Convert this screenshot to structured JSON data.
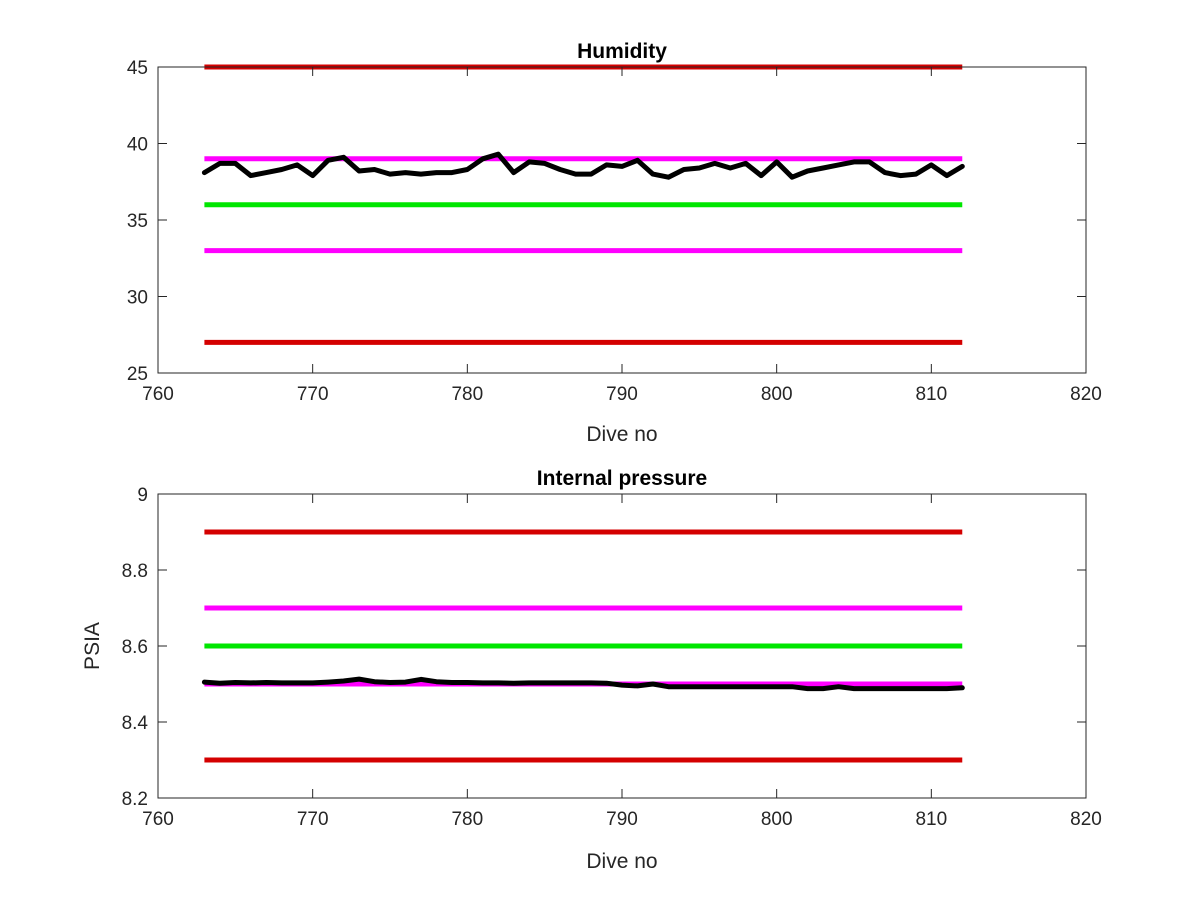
{
  "chart_data": [
    {
      "type": "line",
      "title": "Humidity",
      "xlabel": "Dive no",
      "ylabel": "",
      "xlim": [
        760,
        820
      ],
      "ylim": [
        25,
        45
      ],
      "xticks": [
        760,
        770,
        780,
        790,
        800,
        810,
        820
      ],
      "yticks": [
        25,
        30,
        35,
        40,
        45
      ],
      "xtick_labels": [
        "760",
        "770",
        "780",
        "790",
        "800",
        "810",
        "820"
      ],
      "ytick_labels": [
        "25",
        "30",
        "35",
        "40",
        "45"
      ],
      "grid": false,
      "reference_lines": [
        {
          "y": 45,
          "x": [
            763,
            812
          ],
          "color": "#d40000"
        },
        {
          "y": 39,
          "x": [
            763,
            812
          ],
          "color": "#ff00ff"
        },
        {
          "y": 36,
          "x": [
            763,
            812
          ],
          "color": "#00e600"
        },
        {
          "y": 33,
          "x": [
            763,
            812
          ],
          "color": "#ff00ff"
        },
        {
          "y": 27,
          "x": [
            763,
            812
          ],
          "color": "#d40000"
        }
      ],
      "series": [
        {
          "color": "#000000",
          "x": [
            763,
            764,
            765,
            766,
            767,
            768,
            769,
            770,
            771,
            772,
            773,
            774,
            775,
            776,
            777,
            778,
            779,
            780,
            781,
            782,
            783,
            784,
            785,
            786,
            787,
            788,
            789,
            790,
            791,
            792,
            793,
            794,
            795,
            796,
            797,
            798,
            799,
            800,
            801,
            802,
            803,
            804,
            805,
            806,
            807,
            808,
            809,
            810,
            811,
            812
          ],
          "y": [
            38.1,
            38.7,
            38.7,
            37.9,
            38.1,
            38.3,
            38.6,
            37.9,
            38.9,
            39.1,
            38.2,
            38.3,
            38.0,
            38.1,
            38.0,
            38.1,
            38.1,
            38.3,
            39.0,
            39.3,
            38.1,
            38.8,
            38.7,
            38.3,
            38.0,
            38.0,
            38.6,
            38.5,
            38.9,
            38.0,
            37.8,
            38.3,
            38.4,
            38.7,
            38.4,
            38.7,
            37.9,
            38.8,
            37.8,
            38.2,
            38.4,
            38.6,
            38.8,
            38.8,
            38.1,
            37.9,
            38.0,
            38.6,
            37.9,
            38.5
          ]
        }
      ]
    },
    {
      "type": "line",
      "title": "Internal pressure",
      "xlabel": "Dive no",
      "ylabel": "PSIA",
      "xlim": [
        760,
        820
      ],
      "ylim": [
        8.2,
        9
      ],
      "xticks": [
        760,
        770,
        780,
        790,
        800,
        810,
        820
      ],
      "yticks": [
        8.2,
        8.4,
        8.6,
        8.8,
        9
      ],
      "xtick_labels": [
        "760",
        "770",
        "780",
        "790",
        "800",
        "810",
        "820"
      ],
      "ytick_labels": [
        "8.2",
        "8.4",
        "8.6",
        "8.8",
        "9"
      ],
      "grid": false,
      "reference_lines": [
        {
          "y": 8.9,
          "x": [
            763,
            812
          ],
          "color": "#d40000"
        },
        {
          "y": 8.7,
          "x": [
            763,
            812
          ],
          "color": "#ff00ff"
        },
        {
          "y": 8.6,
          "x": [
            763,
            812
          ],
          "color": "#00e600"
        },
        {
          "y": 8.5,
          "x": [
            763,
            812
          ],
          "color": "#ff00ff"
        },
        {
          "y": 8.3,
          "x": [
            763,
            812
          ],
          "color": "#d40000"
        }
      ],
      "series": [
        {
          "color": "#000000",
          "x": [
            763,
            764,
            765,
            766,
            767,
            768,
            769,
            770,
            771,
            772,
            773,
            774,
            775,
            776,
            777,
            778,
            779,
            780,
            781,
            782,
            783,
            784,
            785,
            786,
            787,
            788,
            789,
            790,
            791,
            792,
            793,
            794,
            795,
            796,
            797,
            798,
            799,
            800,
            801,
            802,
            803,
            804,
            805,
            806,
            807,
            808,
            809,
            810,
            811,
            812
          ],
          "y": [
            8.505,
            8.502,
            8.504,
            8.503,
            8.504,
            8.503,
            8.503,
            8.503,
            8.505,
            8.508,
            8.513,
            8.506,
            8.504,
            8.505,
            8.512,
            8.506,
            8.504,
            8.504,
            8.503,
            8.503,
            8.502,
            8.503,
            8.503,
            8.503,
            8.503,
            8.503,
            8.502,
            8.497,
            8.495,
            8.5,
            8.493,
            8.493,
            8.493,
            8.493,
            8.493,
            8.493,
            8.493,
            8.493,
            8.493,
            8.488,
            8.488,
            8.493,
            8.488,
            8.488,
            8.488,
            8.488,
            8.488,
            8.488,
            8.488,
            8.49
          ]
        }
      ]
    }
  ]
}
